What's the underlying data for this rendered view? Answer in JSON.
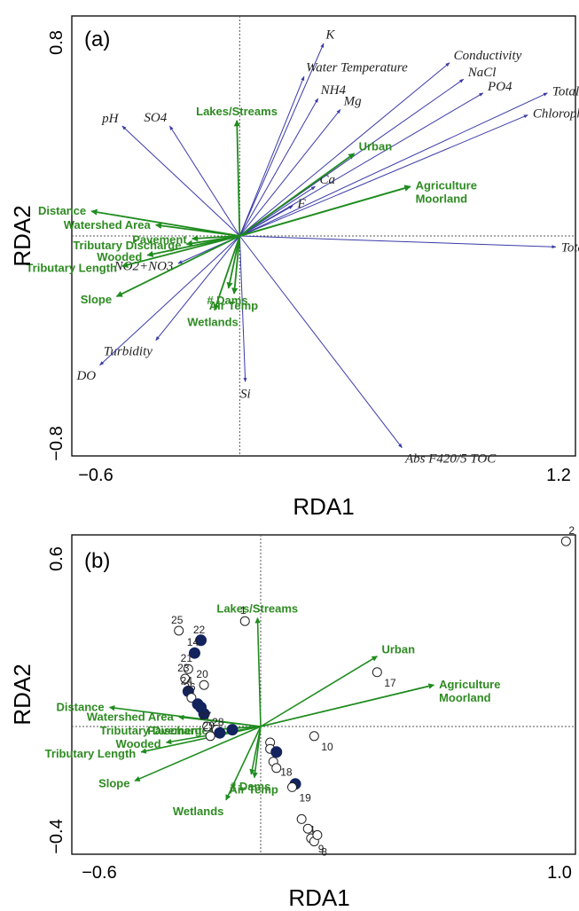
{
  "chart_data": [
    {
      "type": "scatter",
      "panel_label": "(a)",
      "xlabel": "RDA1",
      "ylabel": "RDA2",
      "x_ticks": [
        "−0.6",
        "1.2"
      ],
      "y_ticks": [
        "0.8",
        "−0.8"
      ],
      "xlim": [
        -0.6,
        1.2
      ],
      "ylim": [
        -0.8,
        0.8
      ],
      "species_vectors": [
        {
          "label": "K",
          "x": 0.3,
          "y": 0.7
        },
        {
          "label": "Water Temperature",
          "x": 0.23,
          "y": 0.58
        },
        {
          "label": "NH4",
          "x": 0.28,
          "y": 0.5
        },
        {
          "label": "Mg",
          "x": 0.36,
          "y": 0.46
        },
        {
          "label": "Conductivity",
          "x": 0.75,
          "y": 0.63
        },
        {
          "label": "NaCl",
          "x": 0.8,
          "y": 0.57
        },
        {
          "label": "PO4",
          "x": 0.87,
          "y": 0.52
        },
        {
          "label": "Total P",
          "x": 1.1,
          "y": 0.52
        },
        {
          "label": "Chlorophyll a",
          "x": 1.03,
          "y": 0.44
        },
        {
          "label": "pH",
          "x": -0.42,
          "y": 0.4
        },
        {
          "label": "SO4",
          "x": -0.25,
          "y": 0.4
        },
        {
          "label": "Ca",
          "x": 0.27,
          "y": 0.18
        },
        {
          "label": "F",
          "x": 0.19,
          "y": 0.11
        },
        {
          "label": "Total N",
          "x": 1.13,
          "y": -0.04
        },
        {
          "label": "NO2+NO3",
          "x": -0.22,
          "y": -0.1
        },
        {
          "label": "Turbidity",
          "x": -0.3,
          "y": -0.38
        },
        {
          "label": "DO",
          "x": -0.5,
          "y": -0.47
        },
        {
          "label": "Si",
          "x": 0.02,
          "y": -0.53
        },
        {
          "label": "Abs F420/5 TOC",
          "x": 0.58,
          "y": -0.77
        }
      ],
      "environmental_vectors": [
        {
          "label": "Lakes/Streams",
          "x": -0.01,
          "y": 0.42
        },
        {
          "label": "Urban",
          "x": 0.41,
          "y": 0.3
        },
        {
          "label": "Agriculture",
          "x": 0.61,
          "y": 0.18
        },
        {
          "label": "Moorland",
          "x": 0.61,
          "y": 0.18
        },
        {
          "label": "Distance",
          "x": -0.53,
          "y": 0.09
        },
        {
          "label": "Watershed Area",
          "x": -0.3,
          "y": 0.04
        },
        {
          "label": "Pavement",
          "x": -0.17,
          "y": -0.01
        },
        {
          "label": "Tributary Discharge",
          "x": -0.19,
          "y": -0.03
        },
        {
          "label": "Wooded",
          "x": -0.33,
          "y": -0.07
        },
        {
          "label": "Tributary Length",
          "x": -0.42,
          "y": -0.11
        },
        {
          "label": "Slope",
          "x": -0.44,
          "y": -0.22
        },
        {
          "label": "# Dams",
          "x": -0.04,
          "y": -0.19
        },
        {
          "label": "Air Temp",
          "x": -0.02,
          "y": -0.21
        },
        {
          "label": "Wetlands",
          "x": -0.09,
          "y": -0.27
        }
      ]
    },
    {
      "type": "scatter",
      "panel_label": "(b)",
      "xlabel": "RDA1",
      "ylabel": "RDA2",
      "x_ticks": [
        "−0.6",
        "1.0"
      ],
      "y_ticks": [
        "0.6",
        "−0.4"
      ],
      "xlim": [
        -0.6,
        1.0
      ],
      "ylim": [
        -0.4,
        0.6
      ],
      "environmental_vectors": [
        {
          "label": "Lakes/Streams",
          "x": -0.01,
          "y": 0.34
        },
        {
          "label": "Urban",
          "x": 0.37,
          "y": 0.22
        },
        {
          "label": "Agriculture",
          "x": 0.55,
          "y": 0.13
        },
        {
          "label": "Moorland",
          "x": 0.55,
          "y": 0.13
        },
        {
          "label": "Distance",
          "x": -0.48,
          "y": 0.06
        },
        {
          "label": "Watershed Area",
          "x": -0.26,
          "y": 0.03
        },
        {
          "label": "Pavement",
          "x": -0.17,
          "y": -0.01
        },
        {
          "label": "Tributary Discharge",
          "x": -0.15,
          "y": -0.01
        },
        {
          "label": "Wooded",
          "x": -0.3,
          "y": -0.05
        },
        {
          "label": "Tributary Length",
          "x": -0.38,
          "y": -0.08
        },
        {
          "label": "Slope",
          "x": -0.4,
          "y": -0.17
        },
        {
          "label": "# Dams",
          "x": -0.03,
          "y": -0.15
        },
        {
          "label": "Air Temp",
          "x": -0.02,
          "y": -0.16
        },
        {
          "label": "Wetlands",
          "x": -0.11,
          "y": -0.23
        }
      ],
      "sites": [
        {
          "label": "1",
          "x": -0.05,
          "y": 0.33,
          "filled": false
        },
        {
          "label": "2",
          "x": 0.97,
          "y": 0.58,
          "filled": false
        },
        {
          "label": "17",
          "x": 0.37,
          "y": 0.17,
          "filled": false
        },
        {
          "label": "25",
          "x": -0.26,
          "y": 0.3,
          "filled": false
        },
        {
          "label": "22",
          "x": -0.19,
          "y": 0.27,
          "filled": true
        },
        {
          "label": "14",
          "x": -0.21,
          "y": 0.23,
          "filled": true
        },
        {
          "label": "21",
          "x": -0.23,
          "y": 0.18,
          "filled": false
        },
        {
          "label": "23",
          "x": -0.24,
          "y": 0.15,
          "filled": false
        },
        {
          "label": "20",
          "x": -0.18,
          "y": 0.13,
          "filled": false
        },
        {
          "label": "24",
          "x": -0.23,
          "y": 0.11,
          "filled": true
        },
        {
          "label": "26",
          "x": -0.22,
          "y": 0.09,
          "filled": false
        },
        {
          "label": "",
          "x": -0.2,
          "y": 0.07,
          "filled": true
        },
        {
          "label": "",
          "x": -0.19,
          "y": 0.06,
          "filled": true
        },
        {
          "label": "",
          "x": -0.18,
          "y": 0.04,
          "filled": true
        },
        {
          "label": "27",
          "x": -0.17,
          "y": 0.0,
          "filled": false
        },
        {
          "label": "",
          "x": -0.14,
          "y": -0.01,
          "filled": false
        },
        {
          "label": "",
          "x": -0.09,
          "y": -0.01,
          "filled": true
        },
        {
          "label": "28",
          "x": -0.13,
          "y": -0.02,
          "filled": true
        },
        {
          "label": "29",
          "x": -0.16,
          "y": -0.03,
          "filled": false
        },
        {
          "label": "10",
          "x": 0.17,
          "y": -0.03,
          "filled": false
        },
        {
          "label": "",
          "x": 0.03,
          "y": -0.05,
          "filled": false
        },
        {
          "label": "",
          "x": 0.03,
          "y": -0.07,
          "filled": false
        },
        {
          "label": "",
          "x": 0.05,
          "y": -0.08,
          "filled": true
        },
        {
          "label": "18",
          "x": 0.04,
          "y": -0.11,
          "filled": false
        },
        {
          "label": "",
          "x": 0.05,
          "y": -0.13,
          "filled": false
        },
        {
          "label": "",
          "x": 0.11,
          "y": -0.18,
          "filled": true
        },
        {
          "label": "19",
          "x": 0.1,
          "y": -0.19,
          "filled": false
        },
        {
          "label": "4",
          "x": 0.13,
          "y": -0.29,
          "filled": false
        },
        {
          "label": "",
          "x": 0.15,
          "y": -0.32,
          "filled": false
        },
        {
          "label": "9",
          "x": 0.16,
          "y": -0.35,
          "filled": false
        },
        {
          "label": "8",
          "x": 0.17,
          "y": -0.36,
          "filled": false
        },
        {
          "label": "",
          "x": 0.18,
          "y": -0.34,
          "filled": false
        }
      ]
    }
  ]
}
